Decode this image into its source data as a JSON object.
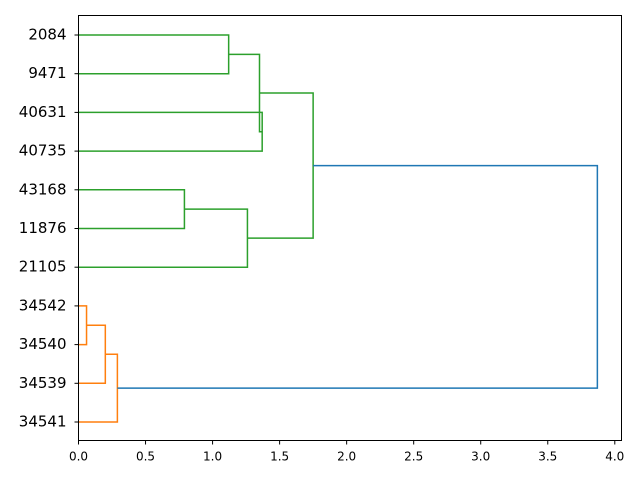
{
  "chart_data": {
    "type": "dendrogram",
    "orientation": "left",
    "leaves": [
      "2084",
      "9471",
      "40631",
      "40735",
      "43168",
      "11876",
      "21105",
      "34542",
      "34540",
      "34539",
      "34541"
    ],
    "x_ticks": [
      "0.0",
      "0.5",
      "1.0",
      "1.5",
      "2.0",
      "2.5",
      "3.0",
      "3.5",
      "4.0"
    ],
    "xlim": [
      0,
      4.05
    ],
    "cluster_colors": {
      "green": "#2ca02c",
      "orange": "#ff7f0e",
      "root": "#1f77b4"
    },
    "merges": [
      {
        "a": "2084",
        "b": "9471",
        "height": 1.12,
        "color": "green"
      },
      {
        "a": "40631",
        "b": "40735",
        "height": 1.37,
        "color": "green"
      },
      {
        "a": "m0",
        "b": "m1",
        "height": 1.35,
        "color": "green"
      },
      {
        "a": "43168",
        "b": "11876",
        "height": 0.79,
        "color": "green"
      },
      {
        "a": "m3",
        "b": "21105",
        "height": 1.26,
        "color": "green"
      },
      {
        "a": "m2",
        "b": "m4",
        "height": 1.75,
        "color": "green"
      },
      {
        "a": "34542",
        "b": "34540",
        "height": 0.06,
        "color": "orange"
      },
      {
        "a": "m6",
        "b": "34539",
        "height": 0.2,
        "color": "orange"
      },
      {
        "a": "m7",
        "b": "34541",
        "height": 0.29,
        "color": "orange"
      },
      {
        "a": "m5",
        "b": "m8",
        "height": 3.87,
        "color": "root"
      }
    ]
  }
}
